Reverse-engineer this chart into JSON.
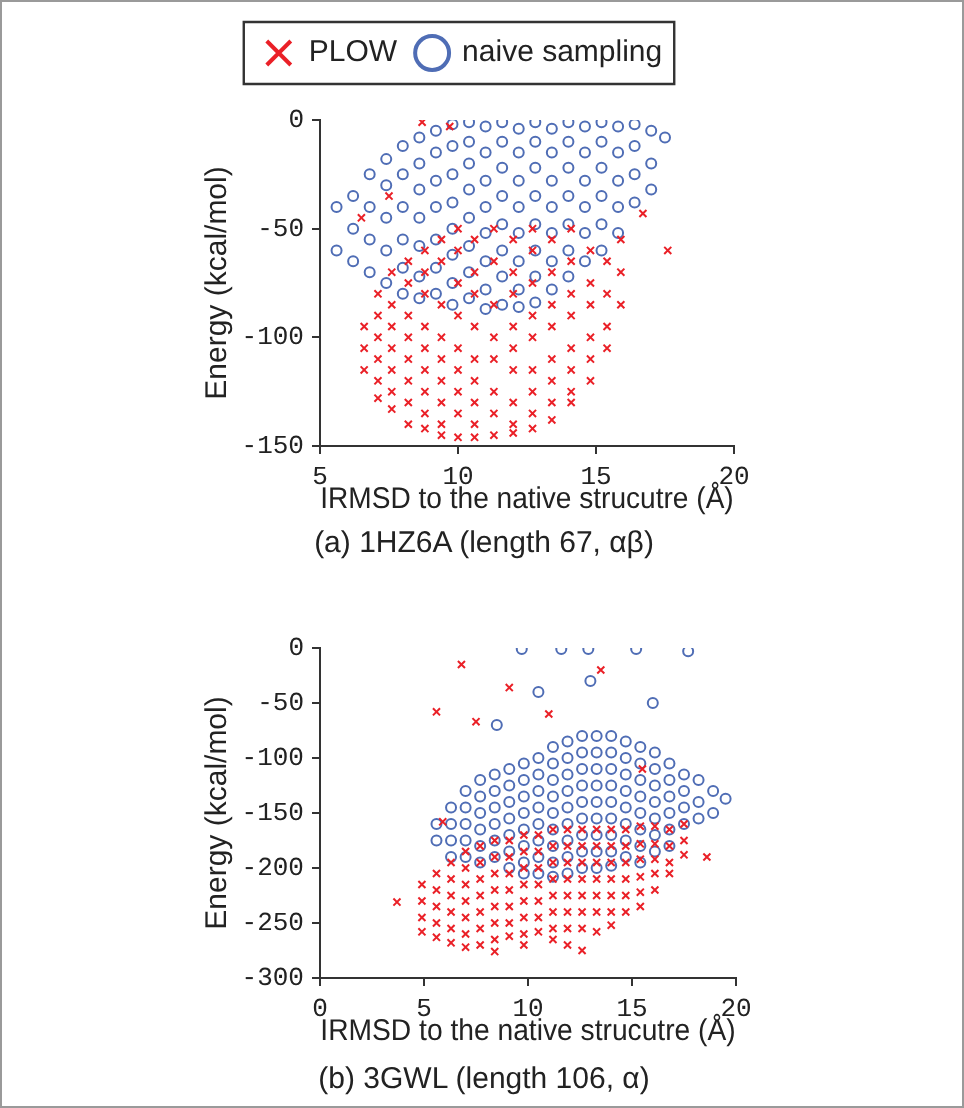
{
  "chart_data": [
    {
      "type": "scatter",
      "xlabel": "IRMSD to the native strucutre (Å)",
      "ylabel": "Energy (kcal/mol)",
      "xlim": [
        5,
        20
      ],
      "ylim": [
        -150,
        0
      ],
      "xticks": [
        5,
        10,
        15,
        20
      ],
      "yticks": [
        -150,
        -100,
        -50,
        0
      ],
      "legend": "top",
      "annotations": [
        "(a) 1HZ6A (length 67, αβ)"
      ],
      "series": [
        {
          "name": "PLOW",
          "color": "#ea2027",
          "marker": "cross",
          "x": [
            6.6,
            6.6,
            6.6,
            7.1,
            7.1,
            7.1,
            7.1,
            7.1,
            7.1,
            7.6,
            7.6,
            7.6,
            7.6,
            7.6,
            7.6,
            7.6,
            8.2,
            8.2,
            8.2,
            8.2,
            8.2,
            8.2,
            8.2,
            8.2,
            8.8,
            8.8,
            8.8,
            8.8,
            8.8,
            8.8,
            8.8,
            8.8,
            8.8,
            9.4,
            9.4,
            9.4,
            9.4,
            9.4,
            9.4,
            9.4,
            9.4,
            9.4,
            10,
            10,
            10,
            10,
            10,
            10,
            10,
            10,
            10,
            10.6,
            10.6,
            10.6,
            10.6,
            10.6,
            10.6,
            10.6,
            10.6,
            10.6,
            11.3,
            11.3,
            11.3,
            11.3,
            11.3,
            11.3,
            11.3,
            11.3,
            12,
            12,
            12,
            12,
            12,
            12,
            12,
            12,
            12,
            12.7,
            12.7,
            12.7,
            12.7,
            12.7,
            12.7,
            12.7,
            12.7,
            12.7,
            13.4,
            13.4,
            13.4,
            13.4,
            13.4,
            13.4,
            13.4,
            13.4,
            14.1,
            14.1,
            14.1,
            14.1,
            14.1,
            14.1,
            14.1,
            14.1,
            14.8,
            14.8,
            14.8,
            14.8,
            14.8,
            14.8,
            15.4,
            15.4,
            15.4,
            15.4,
            15.9,
            15.9,
            15.9,
            8.7,
            9.7,
            7.5,
            6.5,
            17.6,
            16.7
          ],
          "values": [
            -95,
            -105,
            -115,
            -80,
            -90,
            -100,
            -110,
            -120,
            -128,
            -70,
            -85,
            -95,
            -105,
            -115,
            -125,
            -133,
            -65,
            -75,
            -90,
            -100,
            -110,
            -120,
            -130,
            -140,
            -60,
            -70,
            -80,
            -95,
            -105,
            -115,
            -125,
            -135,
            -142,
            -55,
            -65,
            -85,
            -100,
            -110,
            -120,
            -130,
            -140,
            -145,
            -50,
            -60,
            -75,
            -90,
            -105,
            -115,
            -125,
            -135,
            -146,
            -55,
            -70,
            -80,
            -95,
            -110,
            -120,
            -130,
            -140,
            -146,
            -50,
            -65,
            -85,
            -100,
            -110,
            -125,
            -135,
            -145,
            -55,
            -70,
            -80,
            -95,
            -105,
            -115,
            -130,
            -140,
            -144,
            -50,
            -60,
            -75,
            -90,
            -100,
            -115,
            -125,
            -135,
            -142,
            -55,
            -70,
            -85,
            -95,
            -110,
            -120,
            -130,
            -138,
            -50,
            -65,
            -80,
            -90,
            -105,
            -115,
            -125,
            -130,
            -60,
            -75,
            -85,
            -100,
            -110,
            -120,
            -65,
            -80,
            -95,
            -105,
            -55,
            -70,
            -85,
            -1,
            -3,
            -35,
            -45,
            -60,
            -43
          ]
        },
        {
          "name": "naive sampling",
          "color": "#4f6db5",
          "marker": "circle",
          "x": [
            5.6,
            5.6,
            6.2,
            6.2,
            6.2,
            6.8,
            6.8,
            6.8,
            6.8,
            7.4,
            7.4,
            7.4,
            7.4,
            7.4,
            8,
            8,
            8,
            8,
            8,
            8,
            8.6,
            8.6,
            8.6,
            8.6,
            8.6,
            8.6,
            8.6,
            9.2,
            9.2,
            9.2,
            9.2,
            9.2,
            9.2,
            9.2,
            9.8,
            9.8,
            9.8,
            9.8,
            9.8,
            9.8,
            9.8,
            9.8,
            10.4,
            10.4,
            10.4,
            10.4,
            10.4,
            10.4,
            10.4,
            10.4,
            11,
            11,
            11,
            11,
            11,
            11,
            11,
            11,
            11.6,
            11.6,
            11.6,
            11.6,
            11.6,
            11.6,
            11.6,
            11.6,
            12.2,
            12.2,
            12.2,
            12.2,
            12.2,
            12.2,
            12.2,
            12.2,
            12.8,
            12.8,
            12.8,
            12.8,
            12.8,
            12.8,
            12.8,
            12.8,
            13.4,
            13.4,
            13.4,
            13.4,
            13.4,
            13.4,
            13.4,
            14,
            14,
            14,
            14,
            14,
            14,
            14,
            14.6,
            14.6,
            14.6,
            14.6,
            14.6,
            14.6,
            15.2,
            15.2,
            15.2,
            15.2,
            15.2,
            15.2,
            15.8,
            15.8,
            15.8,
            15.8,
            15.8,
            16.4,
            16.4,
            16.4,
            16.4,
            17,
            17,
            17,
            17.5
          ],
          "values": [
            -40,
            -60,
            -35,
            -50,
            -65,
            -25,
            -40,
            -55,
            -70,
            -18,
            -30,
            -45,
            -60,
            -75,
            -12,
            -25,
            -40,
            -55,
            -68,
            -80,
            -8,
            -20,
            -32,
            -45,
            -58,
            -72,
            -82,
            -5,
            -15,
            -28,
            -40,
            -55,
            -68,
            -80,
            -2,
            -12,
            -25,
            -38,
            -50,
            -62,
            -75,
            -85,
            -1,
            -10,
            -20,
            -32,
            -45,
            -58,
            -70,
            -82,
            -3,
            -15,
            -28,
            -40,
            -52,
            -65,
            -78,
            -87,
            -1,
            -10,
            -22,
            -35,
            -48,
            -60,
            -72,
            -85,
            -4,
            -15,
            -28,
            -40,
            -52,
            -65,
            -78,
            -86,
            -1,
            -10,
            -22,
            -35,
            -48,
            -60,
            -72,
            -84,
            -4,
            -15,
            -28,
            -40,
            -52,
            -65,
            -78,
            -1,
            -10,
            -22,
            -35,
            -48,
            -60,
            -72,
            -3,
            -15,
            -28,
            -40,
            -52,
            -65,
            -1,
            -10,
            -22,
            -35,
            -48,
            -60,
            -3,
            -15,
            -28,
            -40,
            -52,
            -2,
            -12,
            -25,
            -38,
            -5,
            -20,
            -32,
            -8
          ]
        }
      ]
    },
    {
      "type": "scatter",
      "xlabel": "IRMSD to the native strucutre (Å)",
      "ylabel": "Energy (kcal/mol)",
      "xlim": [
        0,
        20
      ],
      "ylim": [
        -300,
        0
      ],
      "xticks": [
        0,
        5,
        10,
        15,
        20
      ],
      "yticks": [
        -300,
        -250,
        -200,
        -150,
        -100,
        -50,
        0
      ],
      "annotations": [
        "(b) 3GWL (length 106, α)"
      ],
      "series": [
        {
          "color": "#ea2027",
          "marker": "cross",
          "x": [
            4.9,
            4.9,
            4.9,
            4.9,
            5.6,
            5.6,
            5.6,
            5.6,
            5.6,
            6.3,
            6.3,
            6.3,
            6.3,
            6.3,
            6.3,
            7,
            7,
            7,
            7,
            7,
            7,
            7,
            7.7,
            7.7,
            7.7,
            7.7,
            7.7,
            7.7,
            7.7,
            8.4,
            8.4,
            8.4,
            8.4,
            8.4,
            8.4,
            8.4,
            8.4,
            9.1,
            9.1,
            9.1,
            9.1,
            9.1,
            9.1,
            9.1,
            9.8,
            9.8,
            9.8,
            9.8,
            9.8,
            9.8,
            9.8,
            9.8,
            10.5,
            10.5,
            10.5,
            10.5,
            10.5,
            10.5,
            10.5,
            11.2,
            11.2,
            11.2,
            11.2,
            11.2,
            11.2,
            11.2,
            11.2,
            11.9,
            11.9,
            11.9,
            11.9,
            11.9,
            11.9,
            11.9,
            11.9,
            12.6,
            12.6,
            12.6,
            12.6,
            12.6,
            12.6,
            12.6,
            12.6,
            13.3,
            13.3,
            13.3,
            13.3,
            13.3,
            13.3,
            13.3,
            14,
            14,
            14,
            14,
            14,
            14,
            14,
            14.7,
            14.7,
            14.7,
            14.7,
            14.7,
            14.7,
            15.4,
            15.4,
            15.4,
            15.4,
            15.4,
            15.4,
            16.1,
            16.1,
            16.1,
            16.1,
            16.1,
            16.8,
            16.8,
            16.8,
            16.8,
            17.5,
            17.5,
            17.5,
            6.8,
            5.6,
            3.7,
            7.5,
            9.1,
            5.9,
            11,
            13.5,
            15.5,
            18.6
          ],
          "values": [
            -215,
            -230,
            -245,
            -258,
            -205,
            -220,
            -235,
            -250,
            -263,
            -195,
            -210,
            -225,
            -240,
            -255,
            -268,
            -185,
            -200,
            -215,
            -230,
            -245,
            -260,
            -272,
            -180,
            -195,
            -210,
            -225,
            -240,
            -255,
            -270,
            -175,
            -190,
            -205,
            -220,
            -235,
            -250,
            -265,
            -276,
            -175,
            -190,
            -205,
            -220,
            -235,
            -250,
            -262,
            -170,
            -185,
            -200,
            -215,
            -230,
            -245,
            -260,
            -270,
            -170,
            -185,
            -200,
            -215,
            -230,
            -245,
            -258,
            -165,
            -180,
            -195,
            -210,
            -225,
            -240,
            -255,
            -265,
            -165,
            -180,
            -195,
            -210,
            -225,
            -240,
            -255,
            -270,
            -165,
            -180,
            -195,
            -210,
            -225,
            -240,
            -255,
            -275,
            -165,
            -180,
            -195,
            -210,
            -225,
            -240,
            -258,
            -165,
            -180,
            -195,
            -210,
            -225,
            -240,
            -252,
            -165,
            -180,
            -195,
            -210,
            -225,
            -240,
            -162,
            -178,
            -192,
            -208,
            -222,
            -235,
            -162,
            -178,
            -192,
            -205,
            -220,
            -165,
            -180,
            -195,
            -205,
            -160,
            -175,
            -188,
            -15,
            -58,
            -231,
            -67,
            -36,
            -158,
            -60,
            -20,
            -110,
            -190
          ]
        },
        {
          "color": "#4f6db5",
          "marker": "circle",
          "x": [
            5.6,
            5.6,
            6.3,
            6.3,
            6.3,
            6.3,
            7,
            7,
            7,
            7,
            7,
            7.7,
            7.7,
            7.7,
            7.7,
            7.7,
            7.7,
            8.4,
            8.4,
            8.4,
            8.4,
            8.4,
            8.4,
            9.1,
            9.1,
            9.1,
            9.1,
            9.1,
            9.1,
            9.1,
            9.8,
            9.8,
            9.8,
            9.8,
            9.8,
            9.8,
            9.8,
            9.8,
            10.5,
            10.5,
            10.5,
            10.5,
            10.5,
            10.5,
            10.5,
            10.5,
            11.2,
            11.2,
            11.2,
            11.2,
            11.2,
            11.2,
            11.2,
            11.2,
            11.2,
            11.9,
            11.9,
            11.9,
            11.9,
            11.9,
            11.9,
            11.9,
            11.9,
            11.9,
            12.6,
            12.6,
            12.6,
            12.6,
            12.6,
            12.6,
            12.6,
            12.6,
            12.6,
            13.3,
            13.3,
            13.3,
            13.3,
            13.3,
            13.3,
            13.3,
            13.3,
            13.3,
            14,
            14,
            14,
            14,
            14,
            14,
            14,
            14,
            14,
            14.7,
            14.7,
            14.7,
            14.7,
            14.7,
            14.7,
            14.7,
            14.7,
            15.4,
            15.4,
            15.4,
            15.4,
            15.4,
            15.4,
            15.4,
            15.4,
            16.1,
            16.1,
            16.1,
            16.1,
            16.1,
            16.1,
            16.1,
            16.8,
            16.8,
            16.8,
            16.8,
            16.8,
            16.8,
            17.5,
            17.5,
            17.5,
            17.5,
            18.2,
            18.2,
            18.2,
            18.9,
            18.9,
            9.7,
            11.6,
            12.9,
            15.2,
            17.7,
            10.5,
            13,
            16,
            19.5,
            8.5
          ],
          "values": [
            -160,
            -175,
            -145,
            -160,
            -175,
            -190,
            -130,
            -145,
            -160,
            -175,
            -190,
            -120,
            -135,
            -150,
            -165,
            -180,
            -195,
            -115,
            -130,
            -145,
            -160,
            -175,
            -190,
            -110,
            -125,
            -140,
            -155,
            -170,
            -185,
            -200,
            -105,
            -120,
            -135,
            -150,
            -165,
            -180,
            -195,
            -205,
            -100,
            -115,
            -130,
            -145,
            -160,
            -175,
            -190,
            -205,
            -90,
            -105,
            -120,
            -135,
            -150,
            -165,
            -180,
            -195,
            -208,
            -85,
            -100,
            -115,
            -130,
            -145,
            -160,
            -175,
            -190,
            -205,
            -80,
            -95,
            -110,
            -125,
            -140,
            -155,
            -170,
            -185,
            -200,
            -80,
            -95,
            -110,
            -125,
            -140,
            -155,
            -170,
            -185,
            -200,
            -80,
            -95,
            -110,
            -125,
            -140,
            -155,
            -170,
            -185,
            -198,
            -85,
            -100,
            -115,
            -130,
            -145,
            -160,
            -175,
            -190,
            -90,
            -105,
            -120,
            -135,
            -150,
            -165,
            -180,
            -195,
            -95,
            -110,
            -125,
            -140,
            -155,
            -170,
            -185,
            -105,
            -120,
            -135,
            -150,
            -165,
            -180,
            -115,
            -130,
            -145,
            -160,
            -120,
            -140,
            -155,
            -130,
            -150,
            -1,
            -1,
            -1,
            -1,
            -3,
            -40,
            -30,
            -50,
            -137,
            -70
          ]
        }
      ]
    }
  ]
}
